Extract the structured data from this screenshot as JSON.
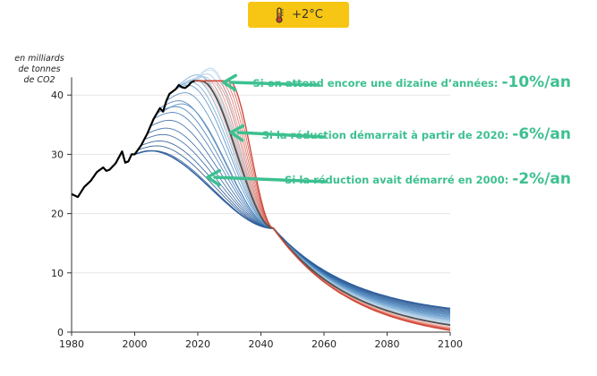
{
  "badge": {
    "icon": "thermometer-icon",
    "label": "+2°C",
    "color": "#f7c614"
  },
  "y_unit_label": [
    "en milliards",
    "de tonnes",
    "de CO2"
  ],
  "annotations": [
    {
      "text": "Si on attend encore une dizaine d’années:",
      "value": "-10%/an"
    },
    {
      "text": "Si la réduction démarrait à partir de 2020:",
      "value": "-6%/an"
    },
    {
      "text": "Si la réduction avait démarré en 2000:",
      "value": "-2%/an"
    }
  ],
  "colors": {
    "accent": "#3dc090",
    "historical": "#000000",
    "central": "#555555",
    "early": "#2c5f9e",
    "late": "#d04a3a"
  },
  "chart_data": {
    "type": "line",
    "xlim": [
      1980,
      2100
    ],
    "ylim": [
      0,
      43
    ],
    "xticks": [
      1980,
      2000,
      2020,
      2040,
      2060,
      2080,
      2100
    ],
    "yticks": [
      0,
      10,
      20,
      30,
      40
    ],
    "grid": "horizontal",
    "convergence_point": {
      "x": 2044,
      "y": 17.5
    },
    "historical": {
      "x": [
        1980,
        1982,
        1984,
        1986,
        1988,
        1990,
        1991,
        1992,
        1994,
        1996,
        1997,
        1998,
        1999,
        2000,
        2002,
        2004,
        2006,
        2008,
        2009,
        2010,
        2011,
        2012,
        2013,
        2014,
        2015,
        2016,
        2017,
        2018,
        2019
      ],
      "y": [
        23.3,
        22.8,
        24.5,
        25.5,
        27.0,
        27.8,
        27.2,
        27.4,
        28.5,
        30.5,
        28.6,
        28.8,
        30.0,
        30.0,
        31.5,
        33.5,
        36.0,
        37.8,
        37.2,
        39.0,
        40.2,
        40.6,
        41.0,
        41.7,
        41.3,
        41.2,
        41.6,
        42.2,
        42.4
      ]
    },
    "scenarios": [
      {
        "name": "-2%/an",
        "start": 2000,
        "color": "#2c5f9e",
        "end_value": 4.0
      },
      {
        "name": "-6%/an",
        "start": 2020,
        "color": "#555555",
        "end_value": 1.2
      },
      {
        "name": "-10%/an",
        "start": 2030,
        "color": "#d04a3a",
        "end_value": 0.3
      }
    ]
  }
}
